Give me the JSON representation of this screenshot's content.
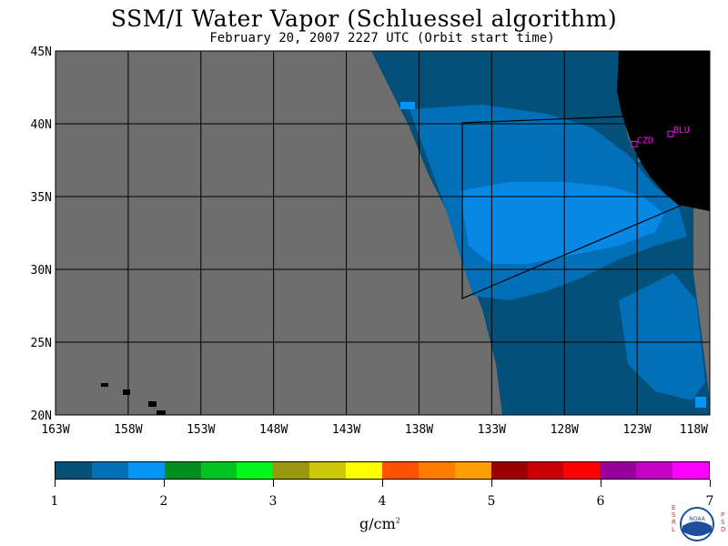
{
  "title": "SSM/I Water Vapor (Schluessel algorithm)",
  "subtitle": "February 20, 2007  2227 UTC  (Orbit start time)",
  "lat_labels": [
    "45N",
    "40N",
    "35N",
    "30N",
    "25N",
    "20N"
  ],
  "lon_labels": [
    "163W",
    "158W",
    "153W",
    "148W",
    "143W",
    "138W",
    "133W",
    "128W",
    "123W",
    "118W"
  ],
  "stations": [
    {
      "name": "CZD",
      "lat": 38.6,
      "lon": -123.2
    },
    {
      "name": "BLU",
      "lat": 39.3,
      "lon": -120.7
    }
  ],
  "colorbar": {
    "colors": [
      "#03517a",
      "#0270b9",
      "#0595f7",
      "#008e1d",
      "#02c21e",
      "#00f71b",
      "#9a9811",
      "#ccc807",
      "#ffff00",
      "#ff5100",
      "#ff7c00",
      "#ff9e01",
      "#9a0000",
      "#c90003",
      "#ff0000",
      "#970098",
      "#c500c7",
      "#ff02ff"
    ],
    "tick_labels": [
      "1",
      "2",
      "3",
      "4",
      "5",
      "6",
      "7"
    ],
    "units_label": "g/cm",
    "units_exponent": "2"
  },
  "logo": {
    "left_letters": "ESRL",
    "right_letters": "PSD",
    "center_text": "NOAA"
  },
  "colors": {
    "ocean_nodata": "#6e6e6e",
    "land": "#000000",
    "wv_low": "#03517a",
    "wv_mid": "#0270b9",
    "wv_high": "#0595f7",
    "station": "#ff00ff"
  }
}
